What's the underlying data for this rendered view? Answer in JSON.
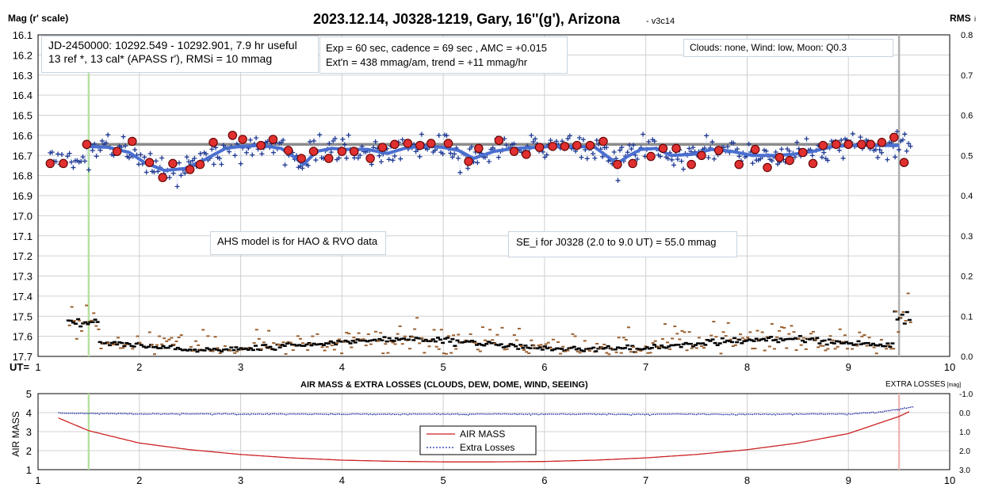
{
  "header": {
    "title": "2023.12.14, J0328-1219, Gary, 16''(g'), Arizona",
    "version": "- v3c14",
    "left_axis_title": "Mag (r' scale)",
    "right_axis_title": "RMS",
    "right_axis_title_suffix": "i",
    "ut_label": "UT="
  },
  "info_boxes": {
    "jd_line1": "JD-2450000: 10292.549 - 10292.901, 7.9 hr useful",
    "jd_line2": "13 ref *, 13 cal*  (APASS r'), RMSi = 10 mmag",
    "exp_line1": "Exp = 60 sec, cadence = 69 sec , AMC = +0.015",
    "exp_line2": "Ext'n = 438 mmag/am, trend = +11 mmag/hr",
    "conditions": "Clouds: none,  Wind:   low,  Moon: Q0.3",
    "ahs_note": "AHS model is for HAO & RVO data",
    "se_note": "SE_i for J0328 (2.0 to 9.0 UT) = 55.0 mmag"
  },
  "lower_panel": {
    "title": "AIR MASS & EXTRA LOSSES (CLOUDS, DEW, DOME, WIND, SEEING)",
    "left_axis_title": "AIR MASS",
    "right_axis_title": "EXTRA LOSSES",
    "right_axis_unit": "[mag]",
    "legend_airmass": "AIR MASS",
    "legend_extra": "Extra Losses"
  },
  "colors": {
    "individual_obs": "#1f3a93",
    "binned_fill": "#e03030",
    "binned_edge": "#600000",
    "model_line": "#4a6fd0",
    "reference_line": "#8c8c8c",
    "rms_black": "#000000",
    "rms_brown": "#9a6030",
    "start_marker": "#b8e0a0",
    "end_marker_top": "#b0b0b0",
    "end_marker_bottom": "#f0b8b8",
    "airmass": "#cc2222",
    "extra_losses": "#1a2aa0",
    "grid": "#d0d0d0"
  },
  "chart_data": [
    {
      "type": "scatter",
      "title": "2023.12.14, J0328-1219, Gary, 16''(g'), Arizona",
      "xlabel": "UT",
      "ylabel": "Mag (r' scale)",
      "y2label": "RMS i",
      "xlim": [
        1,
        10
      ],
      "ylim": [
        17.7,
        16.1
      ],
      "y2lim": [
        0.0,
        0.8
      ],
      "xticks": [
        "1",
        "2",
        "3",
        "4",
        "5",
        "6",
        "7",
        "8",
        "9",
        "10"
      ],
      "yticks": [
        "16.1",
        "16.2",
        "16.3",
        "16.4",
        "16.5",
        "16.6",
        "16.7",
        "16.8",
        "16.9",
        "17.0",
        "17.1",
        "17.2",
        "17.3",
        "17.4",
        "17.5",
        "17.6",
        "17.7"
      ],
      "y2ticks": [
        "0.8",
        "0.7",
        "0.6",
        "0.5",
        "0.4",
        "0.3",
        "0.2",
        "0.1",
        "0.0"
      ],
      "grid": true,
      "reference_level": 16.645,
      "reference_range": [
        1.5,
        9.5
      ],
      "start_marker_ut": 1.5,
      "end_marker_ut": 9.5,
      "binned": {
        "x": [
          1.12,
          1.25,
          1.48,
          1.78,
          1.93,
          2.1,
          2.23,
          2.33,
          2.5,
          2.6,
          2.73,
          2.92,
          3.02,
          3.2,
          3.32,
          3.47,
          3.6,
          3.72,
          3.87,
          4.0,
          4.12,
          4.28,
          4.4,
          4.52,
          4.65,
          4.77,
          4.88,
          5.05,
          5.25,
          5.35,
          5.55,
          5.7,
          5.82,
          5.95,
          6.08,
          6.2,
          6.32,
          6.45,
          6.58,
          6.72,
          6.87,
          7.05,
          7.17,
          7.3,
          7.45,
          7.55,
          7.72,
          7.92,
          8.08,
          8.2,
          8.32,
          8.42,
          8.55,
          8.65,
          8.75,
          8.88,
          9.0,
          9.13,
          9.22,
          9.33,
          9.45,
          9.55
        ],
        "y": [
          16.74,
          16.74,
          16.645,
          16.68,
          16.63,
          16.735,
          16.81,
          16.74,
          16.77,
          16.745,
          16.635,
          16.6,
          16.62,
          16.65,
          16.62,
          16.675,
          16.715,
          16.68,
          16.715,
          16.68,
          16.68,
          16.715,
          16.66,
          16.645,
          16.64,
          16.65,
          16.64,
          16.64,
          16.73,
          16.665,
          16.625,
          16.68,
          16.695,
          16.66,
          16.655,
          16.655,
          16.65,
          16.65,
          16.63,
          16.745,
          16.74,
          16.705,
          16.665,
          16.665,
          16.745,
          16.7,
          16.675,
          16.745,
          16.67,
          16.76,
          16.71,
          16.725,
          16.685,
          16.74,
          16.65,
          16.645,
          16.645,
          16.645,
          16.645,
          16.635,
          16.61,
          16.735
        ],
        "yerr": 0.018
      },
      "model_curve": {
        "x": [
          1.5,
          1.7,
          1.9,
          2.05,
          2.25,
          2.45,
          2.65,
          2.85,
          3.0,
          3.2,
          3.4,
          3.52,
          3.62,
          3.75,
          3.9,
          4.05,
          4.25,
          4.45,
          4.65,
          4.85,
          5.0,
          5.15,
          5.3,
          5.5,
          5.7,
          5.9,
          6.1,
          6.3,
          6.5,
          6.62,
          6.72,
          6.82,
          6.95,
          7.1,
          7.25,
          7.45,
          7.65,
          7.85,
          8.05,
          8.25,
          8.45,
          8.65,
          8.85,
          9.05,
          9.25,
          9.5
        ],
        "y": [
          16.655,
          16.66,
          16.685,
          16.735,
          16.775,
          16.765,
          16.72,
          16.665,
          16.655,
          16.65,
          16.665,
          16.705,
          16.745,
          16.68,
          16.665,
          16.67,
          16.67,
          16.69,
          16.66,
          16.655,
          16.66,
          16.675,
          16.715,
          16.68,
          16.665,
          16.66,
          16.655,
          16.655,
          16.66,
          16.705,
          16.74,
          16.705,
          16.67,
          16.665,
          16.7,
          16.695,
          16.67,
          16.68,
          16.7,
          16.7,
          16.695,
          16.68,
          16.655,
          16.65,
          16.65,
          16.65
        ]
      }
    },
    {
      "type": "line",
      "title": "AIR MASS & EXTRA LOSSES (CLOUDS, DEW, DOME, WIND, SEEING)",
      "xlabel": "UT",
      "ylabel": "AIR MASS",
      "y2label": "EXTRA LOSSES [mag]",
      "xlim": [
        1,
        10
      ],
      "ylim": [
        1,
        5
      ],
      "y2lim": [
        3.0,
        -1.0
      ],
      "xticks": [
        "1",
        "2",
        "3",
        "4",
        "5",
        "6",
        "7",
        "8",
        "9",
        "10"
      ],
      "yticks": [
        "5",
        "4",
        "3",
        "2",
        "1"
      ],
      "y2ticks": [
        "-1.0",
        "0.0",
        "1.0",
        "2.0",
        "3.0"
      ],
      "legend": "inside-bottom-center",
      "series": [
        {
          "name": "AIR MASS",
          "x": [
            1.2,
            1.5,
            2.0,
            2.5,
            3.0,
            3.5,
            4.0,
            4.5,
            5.0,
            5.5,
            6.0,
            6.5,
            7.0,
            7.5,
            8.0,
            8.5,
            9.0,
            9.5,
            9.6
          ],
          "y": [
            3.72,
            3.05,
            2.4,
            2.05,
            1.8,
            1.62,
            1.5,
            1.44,
            1.41,
            1.41,
            1.43,
            1.5,
            1.62,
            1.8,
            2.05,
            2.4,
            2.9,
            3.8,
            4.05
          ]
        },
        {
          "name": "Extra Losses",
          "x": [
            1.2,
            1.5,
            2.0,
            3.0,
            4.0,
            5.0,
            6.0,
            7.0,
            8.0,
            9.0,
            9.3,
            9.5,
            9.65
          ],
          "y": [
            0.0,
            0.02,
            0.05,
            0.05,
            0.06,
            0.06,
            0.06,
            0.06,
            0.07,
            0.05,
            -0.05,
            -0.2,
            -0.35
          ]
        }
      ]
    }
  ]
}
